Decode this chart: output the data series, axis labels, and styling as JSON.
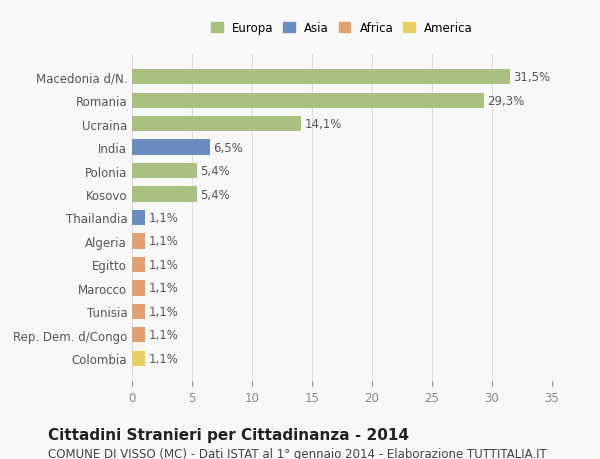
{
  "categories": [
    "Macedonia d/N.",
    "Romania",
    "Ucraina",
    "India",
    "Polonia",
    "Kosovo",
    "Thailandia",
    "Algeria",
    "Egitto",
    "Marocco",
    "Tunisia",
    "Rep. Dem. d/Congo",
    "Colombia"
  ],
  "values": [
    31.5,
    29.3,
    14.1,
    6.5,
    5.4,
    5.4,
    1.1,
    1.1,
    1.1,
    1.1,
    1.1,
    1.1,
    1.1
  ],
  "labels": [
    "31,5%",
    "29,3%",
    "14,1%",
    "6,5%",
    "5,4%",
    "5,4%",
    "1,1%",
    "1,1%",
    "1,1%",
    "1,1%",
    "1,1%",
    "1,1%",
    "1,1%"
  ],
  "continents": [
    "Europa",
    "Europa",
    "Europa",
    "Asia",
    "Europa",
    "Europa",
    "Asia",
    "Africa",
    "Africa",
    "Africa",
    "Africa",
    "Africa",
    "America"
  ],
  "colors": {
    "Europa": "#a8c080",
    "Asia": "#6b8cbf",
    "Africa": "#e0a070",
    "America": "#e8d060"
  },
  "legend_colors": {
    "Europa": "#a8c080",
    "Asia": "#6b8cbf",
    "Africa": "#e0a070",
    "America": "#e8d060"
  },
  "xlim": [
    0,
    35
  ],
  "xticks": [
    0,
    5,
    10,
    15,
    20,
    25,
    30,
    35
  ],
  "title": "Cittadini Stranieri per Cittadinanza - 2014",
  "subtitle": "COMUNE DI VISSO (MC) - Dati ISTAT al 1° gennaio 2014 - Elaborazione TUTTITALIA.IT",
  "bg_color": "#f8f8f8",
  "grid_color": "#dddddd",
  "bar_height": 0.65,
  "title_fontsize": 11,
  "subtitle_fontsize": 8.5,
  "label_fontsize": 8.5,
  "tick_fontsize": 8.5
}
